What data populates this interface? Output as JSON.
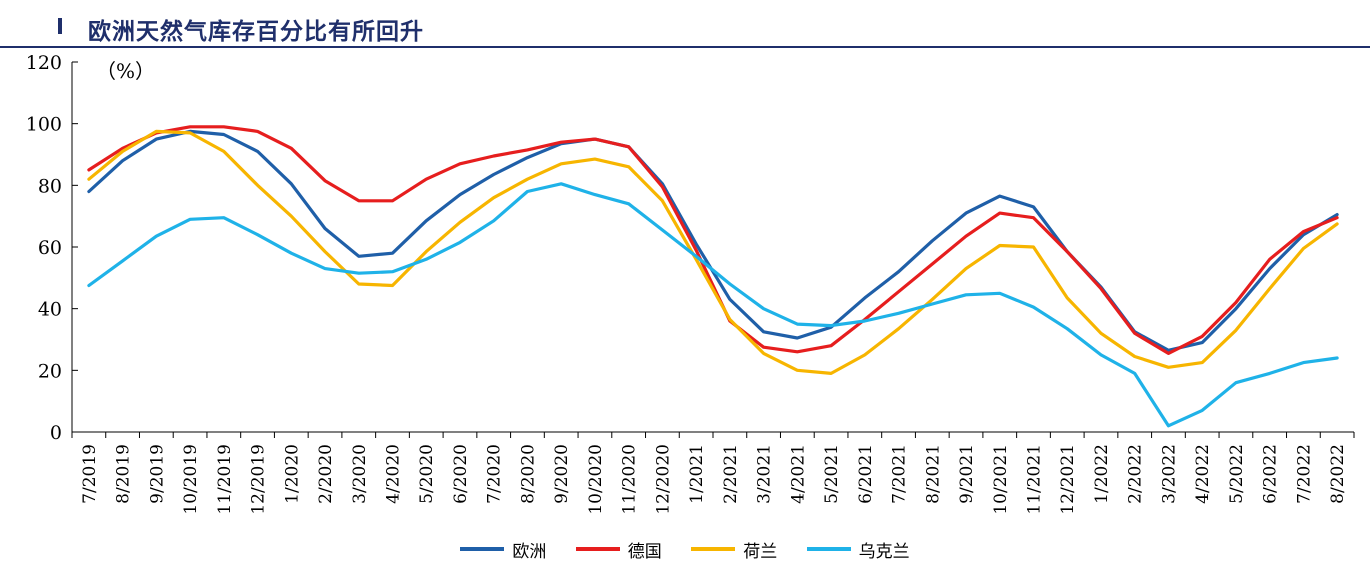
{
  "title": "欧洲天然气库存百分比有所回升",
  "chart_data": {
    "type": "line",
    "ylabel": "（%）",
    "ylim": [
      0,
      120
    ],
    "yticks": [
      0,
      20,
      40,
      60,
      80,
      100,
      120
    ],
    "categories": [
      "7/2019",
      "8/2019",
      "9/2019",
      "10/2019",
      "11/2019",
      "12/2019",
      "1/2020",
      "2/2020",
      "3/2020",
      "4/2020",
      "5/2020",
      "6/2020",
      "7/2020",
      "8/2020",
      "9/2020",
      "10/2020",
      "11/2020",
      "12/2020",
      "1/2021",
      "2/2021",
      "3/2021",
      "4/2021",
      "5/2021",
      "6/2021",
      "7/2021",
      "8/2021",
      "9/2021",
      "10/2021",
      "11/2021",
      "12/2021",
      "1/2022",
      "2/2022",
      "3/2022",
      "4/2022",
      "5/2022",
      "6/2022",
      "7/2022",
      "8/2022"
    ],
    "series": [
      {
        "name": "欧洲",
        "color": "#1f5fa8",
        "values": [
          78,
          88,
          95,
          97.5,
          96.5,
          91,
          80.5,
          66,
          57,
          58,
          68.5,
          77,
          83.5,
          89,
          93.5,
          95,
          92.5,
          80.5,
          61,
          43,
          32.5,
          30.5,
          34,
          43.5,
          52,
          62,
          71,
          76.5,
          73,
          58.5,
          47,
          32.5,
          26.5,
          29,
          40,
          53,
          64,
          70.5
        ]
      },
      {
        "name": "德国",
        "color": "#e61e1e",
        "values": [
          85,
          92,
          97,
          99,
          99,
          97.5,
          92,
          81.5,
          75,
          75,
          82,
          87,
          89.5,
          91.5,
          94,
          95,
          92.5,
          79.5,
          59,
          36,
          27.5,
          26,
          28,
          36.5,
          45.5,
          54.5,
          63.5,
          71,
          69.5,
          58.5,
          46.5,
          32,
          25.5,
          31,
          42,
          56,
          65,
          69.5
        ]
      },
      {
        "name": "荷兰",
        "color": "#f7b500",
        "values": [
          82,
          91,
          97.5,
          97,
          91,
          80,
          70,
          58.5,
          48,
          47.5,
          58.5,
          68,
          76,
          82,
          87,
          88.5,
          86,
          75,
          56,
          36.5,
          25.5,
          20,
          19,
          25,
          33.5,
          43,
          53,
          60.5,
          60,
          43.5,
          32,
          24.5,
          21,
          22.5,
          33,
          46.5,
          59.5,
          67.5
        ]
      },
      {
        "name": "乌克兰",
        "color": "#1fb2e8",
        "values": [
          47.5,
          55.5,
          63.5,
          69,
          69.5,
          64,
          58,
          53,
          51.5,
          52,
          56,
          61.5,
          68.5,
          78,
          80.5,
          77,
          74,
          65.5,
          57,
          48,
          40,
          35,
          34.5,
          36,
          38.5,
          41.5,
          44.5,
          45,
          40.5,
          33.5,
          25,
          19,
          2,
          7,
          16,
          19,
          22.5,
          24
        ]
      }
    ]
  },
  "legend": [
    {
      "label": "欧洲",
      "color": "#1f5fa8"
    },
    {
      "label": "德国",
      "color": "#e61e1e"
    },
    {
      "label": "荷兰",
      "color": "#f7b500"
    },
    {
      "label": "乌克兰",
      "color": "#1fb2e8"
    }
  ]
}
